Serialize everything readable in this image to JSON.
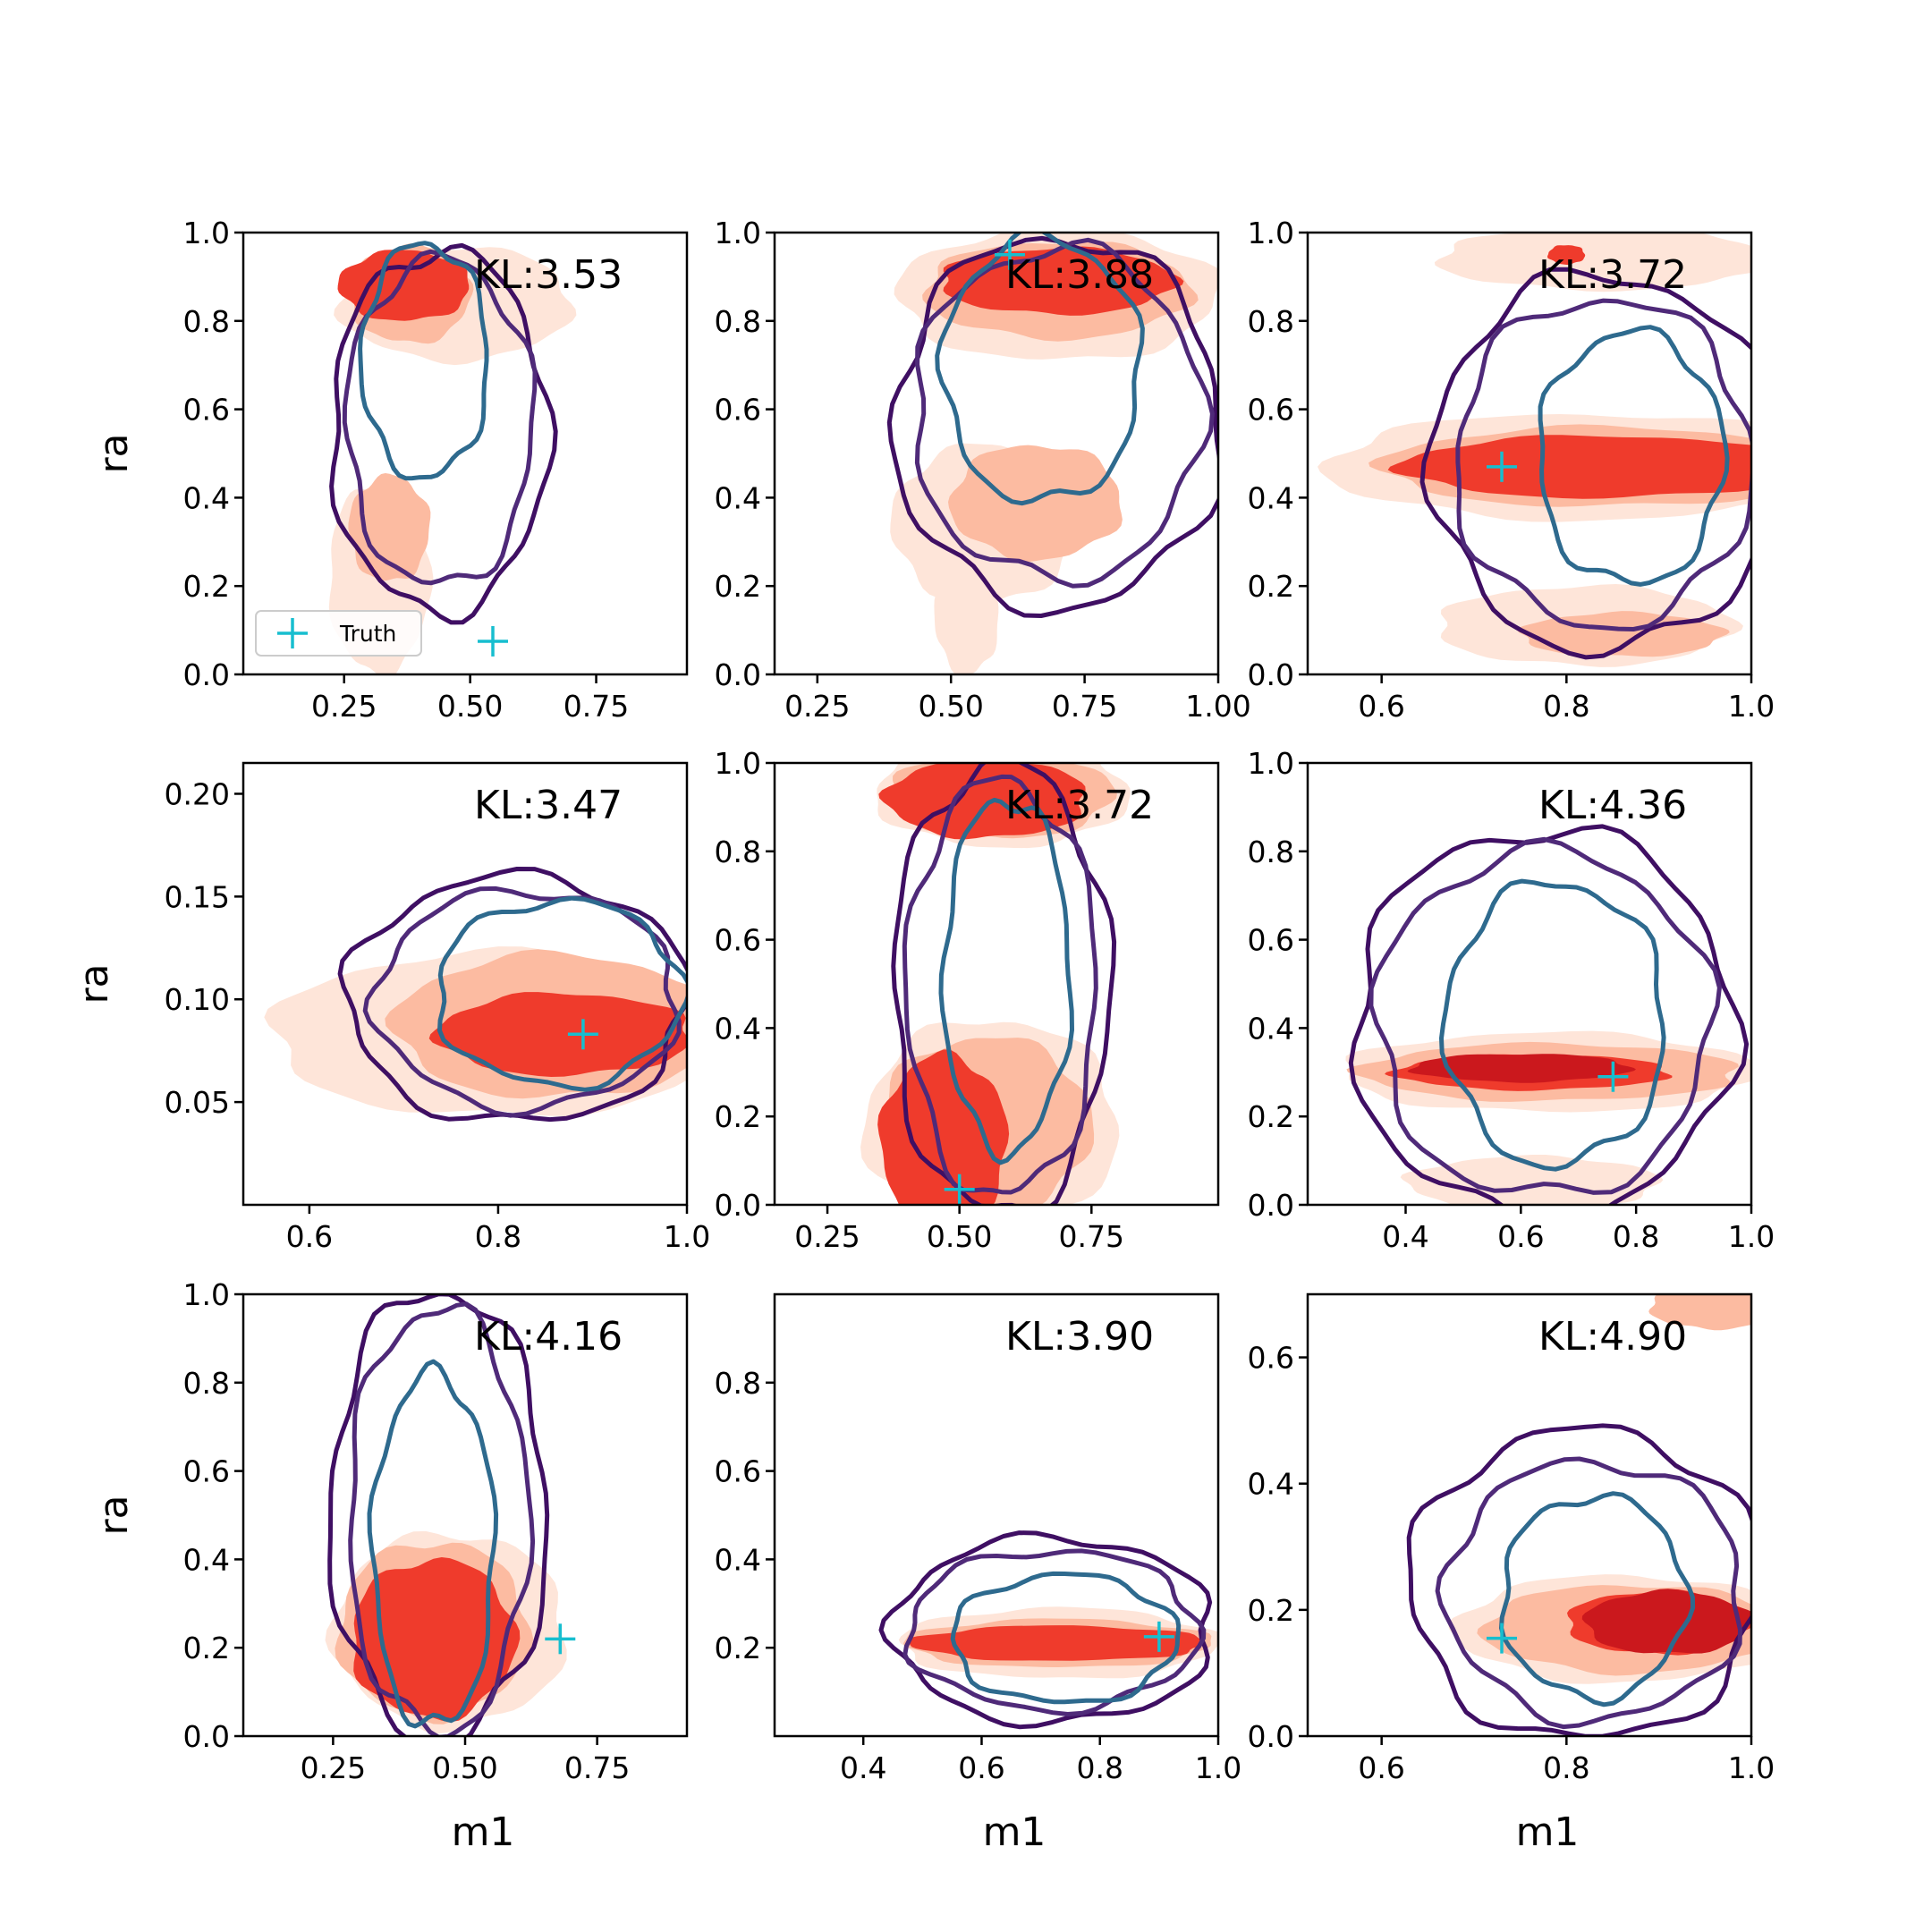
{
  "colors": {
    "filled_levels": [
      "#fee5d9",
      "#fcbba1",
      "#ef3b2c",
      "#cb181d"
    ],
    "line_levels": [
      "#3f0f63",
      "#4f2a79",
      "#2e6a8e"
    ],
    "truth_marker": "#17becf",
    "axes": "#000000"
  },
  "legend": {
    "label": "Truth",
    "icon": "plus-marker-icon"
  },
  "chart_data": [
    {
      "type": "contour",
      "panel": "row1-col1",
      "kl_text": "KL:3.53",
      "xlabel": "",
      "ylabel": "ra",
      "xlim": [
        0.05,
        0.93
      ],
      "ylim": [
        0.0,
        1.0
      ],
      "xticks": [
        0.25,
        0.5,
        0.75
      ],
      "xtick_labels": [
        "0.25",
        "0.50",
        "0.75"
      ],
      "yticks": [
        0.0,
        0.2,
        0.4,
        0.6,
        0.8,
        1.0
      ],
      "ytick_labels": [
        "0.0",
        "0.2",
        "0.4",
        "0.6",
        "0.8",
        "1.0"
      ],
      "truth": [
        0.545,
        0.075
      ],
      "has_legend": true,
      "filled": [
        {
          "level": 0,
          "cx": 0.47,
          "cy": 0.84,
          "rx": 0.23,
          "ry": 0.13
        },
        {
          "level": 0,
          "cx": 0.32,
          "cy": 0.22,
          "rx": 0.1,
          "ry": 0.22
        },
        {
          "level": 1,
          "cx": 0.38,
          "cy": 0.86,
          "rx": 0.12,
          "ry": 0.11
        },
        {
          "level": 1,
          "cx": 0.34,
          "cy": 0.33,
          "rx": 0.08,
          "ry": 0.12
        },
        {
          "level": 2,
          "cx": 0.37,
          "cy": 0.88,
          "rx": 0.13,
          "ry": 0.08
        }
      ],
      "lines": [
        {
          "level": 0,
          "cx": 0.44,
          "cy": 0.55,
          "rx": 0.215,
          "ry": 0.41
        },
        {
          "level": 1,
          "cx": 0.44,
          "cy": 0.57,
          "rx": 0.185,
          "ry": 0.37
        },
        {
          "level": 2,
          "cx": 0.41,
          "cy": 0.71,
          "rx": 0.125,
          "ry": 0.265
        }
      ]
    },
    {
      "type": "contour",
      "panel": "row1-col2",
      "kl_text": "KL:3.88",
      "xlabel": "",
      "ylabel": "",
      "xlim": [
        0.17,
        1.0
      ],
      "ylim": [
        0.0,
        1.0
      ],
      "xticks": [
        0.25,
        0.5,
        0.75,
        1.0
      ],
      "xtick_labels": [
        "0.25",
        "0.50",
        "0.75",
        "1.00"
      ],
      "yticks": [
        0.0,
        0.2,
        0.4,
        0.6,
        0.8,
        1.0
      ],
      "ytick_labels": [
        "0.0",
        "0.2",
        "0.4",
        "0.6",
        "0.8",
        "1.0"
      ],
      "truth": [
        0.61,
        0.95
      ],
      "has_legend": false,
      "filled": [
        {
          "level": 0,
          "cx": 0.7,
          "cy": 0.86,
          "rx": 0.3,
          "ry": 0.15
        },
        {
          "level": 0,
          "cx": 0.56,
          "cy": 0.34,
          "rx": 0.17,
          "ry": 0.18
        },
        {
          "level": 0,
          "cx": 0.53,
          "cy": 0.14,
          "rx": 0.06,
          "ry": 0.14
        },
        {
          "level": 1,
          "cx": 0.66,
          "cy": 0.39,
          "rx": 0.16,
          "ry": 0.13
        },
        {
          "level": 1,
          "cx": 0.7,
          "cy": 0.87,
          "rx": 0.25,
          "ry": 0.11
        },
        {
          "level": 2,
          "cx": 0.7,
          "cy": 0.89,
          "rx": 0.22,
          "ry": 0.075
        }
      ],
      "lines": [
        {
          "level": 0,
          "cx": 0.7,
          "cy": 0.57,
          "rx": 0.305,
          "ry": 0.42
        },
        {
          "level": 1,
          "cx": 0.7,
          "cy": 0.59,
          "rx": 0.27,
          "ry": 0.375
        },
        {
          "level": 2,
          "cx": 0.67,
          "cy": 0.69,
          "rx": 0.185,
          "ry": 0.3
        }
      ]
    },
    {
      "type": "contour",
      "panel": "row1-col3",
      "kl_text": "KL:3.72",
      "xlabel": "",
      "ylabel": "",
      "xlim": [
        0.52,
        1.0
      ],
      "ylim": [
        0.0,
        1.0
      ],
      "xticks": [
        0.6,
        0.8,
        1.0
      ],
      "xtick_labels": [
        "0.6",
        "0.8",
        "1.0"
      ],
      "yticks": [
        0.0,
        0.2,
        0.4,
        0.6,
        0.8,
        1.0
      ],
      "ytick_labels": [
        "0.0",
        "0.2",
        "0.4",
        "0.6",
        "0.8",
        "1.0"
      ],
      "truth": [
        0.73,
        0.47
      ],
      "has_legend": false,
      "filled": [
        {
          "level": 0,
          "cx": 0.82,
          "cy": 0.47,
          "rx": 0.28,
          "ry": 0.12
        },
        {
          "level": 0,
          "cx": 0.84,
          "cy": 0.94,
          "rx": 0.18,
          "ry": 0.07
        },
        {
          "level": 0,
          "cx": 0.82,
          "cy": 0.11,
          "rx": 0.16,
          "ry": 0.09
        },
        {
          "level": 1,
          "cx": 0.86,
          "cy": 0.09,
          "rx": 0.11,
          "ry": 0.05
        },
        {
          "level": 1,
          "cx": 0.84,
          "cy": 0.47,
          "rx": 0.24,
          "ry": 0.09
        },
        {
          "level": 2,
          "cx": 0.84,
          "cy": 0.47,
          "rx": 0.22,
          "ry": 0.07
        },
        {
          "level": 2,
          "cx": 0.8,
          "cy": 0.95,
          "rx": 0.02,
          "ry": 0.022
        }
      ],
      "lines": [
        {
          "level": 0,
          "cx": 0.84,
          "cy": 0.48,
          "rx": 0.185,
          "ry": 0.425
        },
        {
          "level": 1,
          "cx": 0.84,
          "cy": 0.48,
          "rx": 0.16,
          "ry": 0.37
        },
        {
          "level": 2,
          "cx": 0.87,
          "cy": 0.49,
          "rx": 0.1,
          "ry": 0.285
        }
      ]
    },
    {
      "type": "contour",
      "panel": "row2-col1",
      "kl_text": "KL:3.47",
      "xlabel": "",
      "ylabel": "ra",
      "xlim": [
        0.53,
        1.0
      ],
      "ylim": [
        0.0,
        0.215
      ],
      "xticks": [
        0.6,
        0.8,
        1.0
      ],
      "xtick_labels": [
        "0.6",
        "0.8",
        "1.0"
      ],
      "yticks": [
        0.05,
        0.1,
        0.15,
        0.2
      ],
      "ytick_labels": [
        "0.05",
        "0.10",
        "0.15",
        "0.20"
      ],
      "truth": [
        0.89,
        0.083
      ],
      "has_legend": false,
      "filled": [
        {
          "level": 0,
          "cx": 0.8,
          "cy": 0.083,
          "rx": 0.24,
          "ry": 0.04
        },
        {
          "level": 1,
          "cx": 0.86,
          "cy": 0.087,
          "rx": 0.17,
          "ry": 0.035
        },
        {
          "level": 2,
          "cx": 0.87,
          "cy": 0.083,
          "rx": 0.135,
          "ry": 0.02
        }
      ],
      "lines": [
        {
          "level": 0,
          "cx": 0.82,
          "cy": 0.1,
          "rx": 0.18,
          "ry": 0.06
        },
        {
          "level": 1,
          "cx": 0.83,
          "cy": 0.1,
          "rx": 0.16,
          "ry": 0.053
        },
        {
          "level": 2,
          "cx": 0.865,
          "cy": 0.103,
          "rx": 0.13,
          "ry": 0.045
        }
      ]
    },
    {
      "type": "contour",
      "panel": "row2-col2",
      "kl_text": "KL:3.72",
      "xlabel": "",
      "ylabel": "",
      "xlim": [
        0.15,
        0.99
      ],
      "ylim": [
        0.0,
        1.0
      ],
      "xticks": [
        0.25,
        0.5,
        0.75
      ],
      "xtick_labels": [
        "0.25",
        "0.50",
        "0.75"
      ],
      "yticks": [
        0.0,
        0.2,
        0.4,
        0.6,
        0.8,
        1.0
      ],
      "ytick_labels": [
        "0.0",
        "0.2",
        "0.4",
        "0.6",
        "0.8",
        "1.0"
      ],
      "truth": [
        0.5,
        0.035
      ],
      "has_legend": false,
      "filled": [
        {
          "level": 0,
          "cx": 0.56,
          "cy": 0.18,
          "rx": 0.24,
          "ry": 0.24
        },
        {
          "level": 0,
          "cx": 0.58,
          "cy": 0.93,
          "rx": 0.24,
          "ry": 0.12
        },
        {
          "level": 1,
          "cx": 0.55,
          "cy": 0.18,
          "rx": 0.2,
          "ry": 0.2
        },
        {
          "level": 1,
          "cx": 0.58,
          "cy": 0.93,
          "rx": 0.21,
          "ry": 0.1
        },
        {
          "level": 2,
          "cx": 0.47,
          "cy": 0.14,
          "rx": 0.12,
          "ry": 0.2
        },
        {
          "level": 2,
          "cx": 0.55,
          "cy": 0.92,
          "rx": 0.19,
          "ry": 0.09
        }
      ],
      "lines": [
        {
          "level": 0,
          "cx": 0.58,
          "cy": 0.49,
          "rx": 0.205,
          "ry": 0.51
        },
        {
          "level": 1,
          "cx": 0.58,
          "cy": 0.49,
          "rx": 0.18,
          "ry": 0.47
        },
        {
          "level": 2,
          "cx": 0.59,
          "cy": 0.52,
          "rx": 0.12,
          "ry": 0.4
        }
      ]
    },
    {
      "type": "contour",
      "panel": "row2-col3",
      "kl_text": "KL:4.36",
      "xlabel": "",
      "ylabel": "",
      "xlim": [
        0.23,
        1.0
      ],
      "ylim": [
        0.0,
        1.0
      ],
      "xticks": [
        0.4,
        0.6,
        0.8,
        1.0
      ],
      "xtick_labels": [
        "0.4",
        "0.6",
        "0.8",
        "1.0"
      ],
      "yticks": [
        0.0,
        0.2,
        0.4,
        0.6,
        0.8,
        1.0
      ],
      "ytick_labels": [
        "0.0",
        "0.2",
        "0.4",
        "0.6",
        "0.8",
        "1.0"
      ],
      "truth": [
        0.76,
        0.29
      ],
      "has_legend": false,
      "filled": [
        {
          "level": 0,
          "cx": 0.65,
          "cy": 0.3,
          "rx": 0.36,
          "ry": 0.09
        },
        {
          "level": 0,
          "cx": 0.62,
          "cy": 0.05,
          "rx": 0.22,
          "ry": 0.06
        },
        {
          "level": 1,
          "cx": 0.65,
          "cy": 0.3,
          "rx": 0.33,
          "ry": 0.065
        },
        {
          "level": 2,
          "cx": 0.62,
          "cy": 0.3,
          "rx": 0.24,
          "ry": 0.04
        },
        {
          "level": 3,
          "cx": 0.6,
          "cy": 0.31,
          "rx": 0.19,
          "ry": 0.032
        }
      ],
      "lines": [
        {
          "level": 0,
          "cx": 0.64,
          "cy": 0.41,
          "rx": 0.33,
          "ry": 0.44
        },
        {
          "level": 1,
          "cx": 0.64,
          "cy": 0.41,
          "rx": 0.29,
          "ry": 0.39
        },
        {
          "level": 2,
          "cx": 0.66,
          "cy": 0.41,
          "rx": 0.19,
          "ry": 0.32
        }
      ]
    },
    {
      "type": "contour",
      "panel": "row3-col1",
      "kl_text": "KL:4.16",
      "xlabel": "m1",
      "ylabel": "ra",
      "xlim": [
        0.08,
        0.92
      ],
      "ylim": [
        0.0,
        1.0
      ],
      "xticks": [
        0.25,
        0.5,
        0.75
      ],
      "xtick_labels": [
        "0.25",
        "0.50",
        "0.75"
      ],
      "yticks": [
        0.0,
        0.2,
        0.4,
        0.6,
        0.8,
        1.0
      ],
      "ytick_labels": [
        "0.0",
        "0.2",
        "0.4",
        "0.6",
        "0.8",
        "1.0"
      ],
      "truth": [
        0.68,
        0.22
      ],
      "has_legend": false,
      "filled": [
        {
          "level": 0,
          "cx": 0.47,
          "cy": 0.24,
          "rx": 0.22,
          "ry": 0.22
        },
        {
          "level": 1,
          "cx": 0.44,
          "cy": 0.24,
          "rx": 0.18,
          "ry": 0.2
        },
        {
          "level": 2,
          "cx": 0.44,
          "cy": 0.22,
          "rx": 0.155,
          "ry": 0.18
        }
      ],
      "lines": [
        {
          "level": 0,
          "cx": 0.45,
          "cy": 0.5,
          "rx": 0.205,
          "ry": 0.51
        },
        {
          "level": 1,
          "cx": 0.45,
          "cy": 0.49,
          "rx": 0.17,
          "ry": 0.48
        },
        {
          "level": 2,
          "cx": 0.44,
          "cy": 0.42,
          "rx": 0.115,
          "ry": 0.4
        }
      ]
    },
    {
      "type": "contour",
      "panel": "row3-col2",
      "kl_text": "KL:3.90",
      "xlabel": "m1",
      "ylabel": "",
      "xlim": [
        0.25,
        1.0
      ],
      "ylim": [
        0.0,
        1.0
      ],
      "xticks": [
        0.4,
        0.6,
        0.8,
        1.0
      ],
      "xtick_labels": [
        "0.4",
        "0.6",
        "0.8",
        "1.0"
      ],
      "yticks": [
        0.2,
        0.4,
        0.6,
        0.8
      ],
      "ytick_labels": [
        "0.2",
        "0.4",
        "0.6",
        "0.8"
      ],
      "truth": [
        0.9,
        0.225
      ],
      "has_legend": false,
      "filled": [
        {
          "level": 0,
          "cx": 0.73,
          "cy": 0.21,
          "rx": 0.27,
          "ry": 0.08
        },
        {
          "level": 1,
          "cx": 0.73,
          "cy": 0.21,
          "rx": 0.26,
          "ry": 0.055
        },
        {
          "level": 2,
          "cx": 0.73,
          "cy": 0.21,
          "rx": 0.25,
          "ry": 0.04
        }
      ],
      "lines": [
        {
          "level": 0,
          "cx": 0.72,
          "cy": 0.24,
          "rx": 0.27,
          "ry": 0.21
        },
        {
          "level": 1,
          "cx": 0.72,
          "cy": 0.24,
          "rx": 0.245,
          "ry": 0.18
        },
        {
          "level": 2,
          "cx": 0.74,
          "cy": 0.22,
          "rx": 0.19,
          "ry": 0.145
        }
      ]
    },
    {
      "type": "contour",
      "panel": "row3-col3",
      "kl_text": "KL:4.90",
      "xlabel": "m1",
      "ylabel": "",
      "xlim": [
        0.52,
        1.0
      ],
      "ylim": [
        0.0,
        0.7
      ],
      "xticks": [
        0.6,
        0.8,
        1.0
      ],
      "xtick_labels": [
        "0.6",
        "0.8",
        "1.0"
      ],
      "yticks": [
        0.0,
        0.2,
        0.4,
        0.6
      ],
      "ytick_labels": [
        "0.0",
        "0.2",
        "0.4",
        "0.6"
      ],
      "truth": [
        0.73,
        0.155
      ],
      "has_legend": false,
      "filled": [
        {
          "level": 0,
          "cx": 0.86,
          "cy": 0.17,
          "rx": 0.18,
          "ry": 0.085
        },
        {
          "level": 1,
          "cx": 0.87,
          "cy": 0.17,
          "rx": 0.16,
          "ry": 0.07
        },
        {
          "level": 2,
          "cx": 0.9,
          "cy": 0.18,
          "rx": 0.1,
          "ry": 0.05
        },
        {
          "level": 3,
          "cx": 0.91,
          "cy": 0.18,
          "rx": 0.09,
          "ry": 0.05
        },
        {
          "level": 1,
          "cx": 0.96,
          "cy": 0.68,
          "rx": 0.07,
          "ry": 0.035
        }
      ],
      "lines": [
        {
          "level": 0,
          "cx": 0.82,
          "cy": 0.24,
          "rx": 0.19,
          "ry": 0.245
        },
        {
          "level": 1,
          "cx": 0.83,
          "cy": 0.23,
          "rx": 0.16,
          "ry": 0.205
        },
        {
          "level": 2,
          "cx": 0.83,
          "cy": 0.22,
          "rx": 0.1,
          "ry": 0.16
        }
      ]
    }
  ]
}
